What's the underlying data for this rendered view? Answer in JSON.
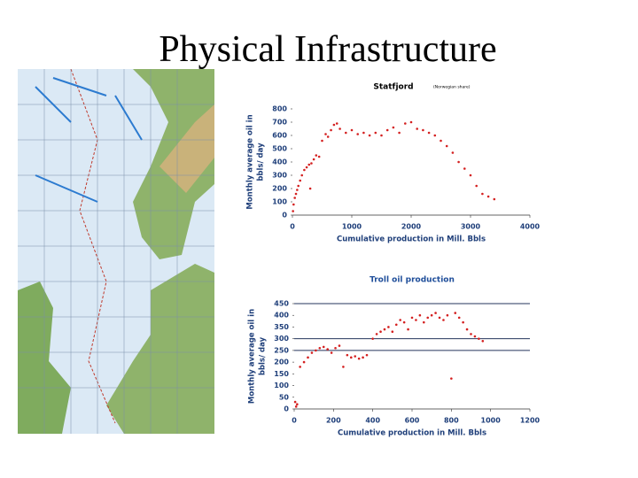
{
  "title": "Physical Infrastructure",
  "chart_data": [
    {
      "type": "scatter",
      "title": "Statfjord",
      "subtitle": "(Norwegian share)",
      "title_color": "#000000",
      "ylabel": [
        "Monthly average oil in",
        "bbls/ day"
      ],
      "xlabel": "Cumulative production in Mill. Bbls",
      "xlim": [
        0,
        4000
      ],
      "xticks": [
        0,
        1000,
        2000,
        3000,
        4000
      ],
      "ylim": [
        0,
        800
      ],
      "yticks": [
        0,
        100,
        200,
        300,
        400,
        500,
        600,
        700,
        800
      ],
      "color": "#d42020",
      "x": [
        10,
        20,
        40,
        60,
        80,
        100,
        130,
        160,
        200,
        240,
        280,
        300,
        320,
        360,
        400,
        450,
        500,
        560,
        600,
        650,
        700,
        750,
        800,
        900,
        1000,
        1100,
        1200,
        1300,
        1400,
        1500,
        1600,
        1700,
        1800,
        1900,
        2000,
        2100,
        2200,
        2300,
        2400,
        2500,
        2600,
        2700,
        2800,
        2900,
        3000,
        3100,
        3200,
        3300,
        3400
      ],
      "values": [
        30,
        80,
        130,
        160,
        190,
        220,
        260,
        300,
        340,
        360,
        380,
        200,
        390,
        420,
        450,
        440,
        560,
        610,
        590,
        640,
        680,
        690,
        650,
        620,
        640,
        610,
        620,
        600,
        620,
        600,
        640,
        660,
        620,
        690,
        700,
        650,
        640,
        620,
        600,
        560,
        520,
        470,
        400,
        350,
        300,
        220,
        160,
        140,
        120
      ]
    },
    {
      "type": "scatter",
      "title": "Troll oil production",
      "title_color": "#1f4e9a",
      "ylabel": [
        "Monthly average oil in",
        "bbls/ day"
      ],
      "xlabel": "Cumulative production in Mill. Bbls",
      "xlim": [
        0,
        1200
      ],
      "xticks": [
        0,
        200,
        400,
        600,
        800,
        1000,
        1200
      ],
      "ylim": [
        0,
        450
      ],
      "yticks": [
        0,
        50,
        100,
        150,
        200,
        250,
        300,
        350,
        400,
        450
      ],
      "grid_lines": [
        250,
        300,
        450
      ],
      "color": "#d42020",
      "x": [
        5,
        10,
        15,
        30,
        50,
        70,
        90,
        110,
        130,
        150,
        170,
        190,
        210,
        230,
        250,
        270,
        290,
        310,
        330,
        350,
        370,
        400,
        420,
        440,
        460,
        480,
        500,
        520,
        540,
        560,
        580,
        600,
        620,
        640,
        660,
        680,
        700,
        720,
        740,
        760,
        780,
        800,
        820,
        840,
        860,
        880,
        900,
        920,
        940,
        960
      ],
      "values": [
        30,
        10,
        20,
        180,
        200,
        220,
        240,
        250,
        260,
        265,
        255,
        240,
        260,
        270,
        180,
        230,
        220,
        225,
        215,
        220,
        230,
        300,
        320,
        330,
        340,
        350,
        330,
        360,
        380,
        370,
        340,
        390,
        380,
        400,
        370,
        390,
        400,
        410,
        390,
        380,
        400,
        130,
        410,
        390,
        370,
        340,
        320,
        310,
        300,
        290
      ]
    }
  ]
}
